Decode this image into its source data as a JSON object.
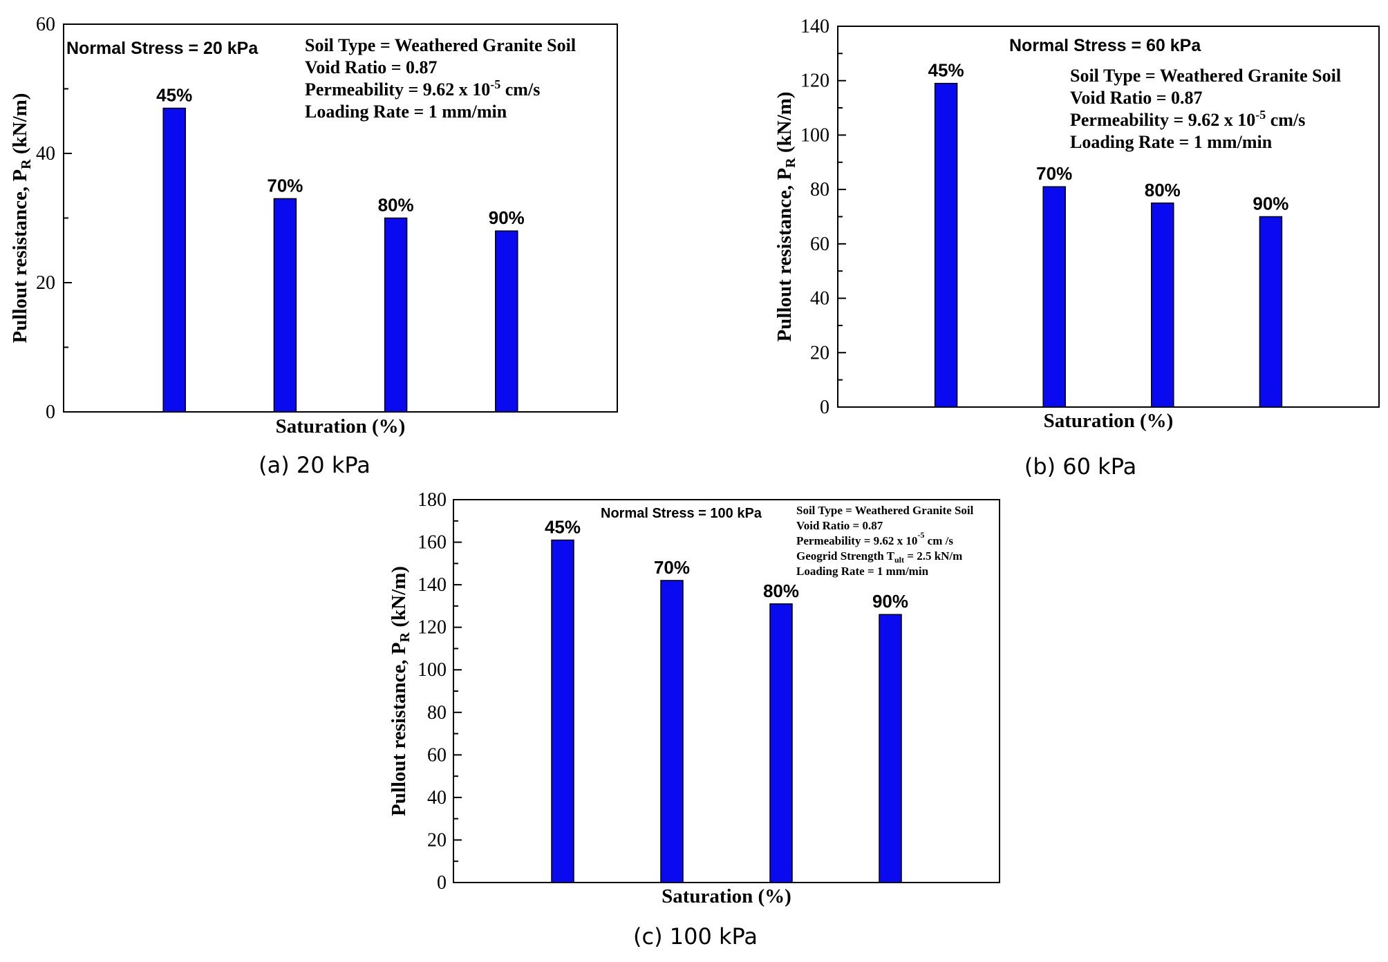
{
  "chart_data": [
    {
      "type": "bar",
      "caption": "(a) 20 kPa",
      "xlabel": "Saturation (%)",
      "ylabel": "Pullout resistance, PR (kN/m)",
      "ylabel_main": "Pullout resistance, P",
      "ylabel_sub": "R",
      "ylabel_tail": " (kN/m)",
      "ylim": [
        0,
        60
      ],
      "yticks": [
        0,
        20,
        40,
        60
      ],
      "categories": [
        "45%",
        "70%",
        "80%",
        "90%"
      ],
      "values": [
        47,
        33,
        30,
        28
      ],
      "bar_color": "#0a0af0",
      "stress_note": "Normal Stress = 20 kPa",
      "info_lines": [
        "Soil Type = Weathered Granite Soil",
        "Void Ratio = 0.87",
        "Permeability = 9.62 x 10-5 cm/s",
        "Loading Rate = 1 mm/min"
      ]
    },
    {
      "type": "bar",
      "caption": "(b) 60 kPa",
      "xlabel": "Saturation (%)",
      "ylabel": "Pullout resistance, PR (kN/m)",
      "ylabel_main": "Pullout resistance, P",
      "ylabel_sub": "R",
      "ylabel_tail": " (kN/m)",
      "ylim": [
        0,
        140
      ],
      "yticks": [
        0,
        20,
        40,
        60,
        80,
        100,
        120,
        140
      ],
      "categories": [
        "45%",
        "70%",
        "80%",
        "90%"
      ],
      "values": [
        119,
        81,
        75,
        70
      ],
      "bar_color": "#0a0af0",
      "stress_note": "Normal Stress = 60 kPa",
      "info_lines": [
        "Soil Type = Weathered Granite Soil",
        "Void Ratio = 0.87",
        "Permeability = 9.62 x 10-5 cm/s",
        "Loading Rate = 1 mm/min"
      ]
    },
    {
      "type": "bar",
      "caption": "(c) 100 kPa",
      "xlabel": "Saturation (%)",
      "ylabel": "Pullout resistance, PR (kN/m)",
      "ylabel_main": "Pullout resistance, P",
      "ylabel_sub": "R",
      "ylabel_tail": " (kN/m)",
      "ylim": [
        0,
        180
      ],
      "yticks": [
        0,
        20,
        40,
        60,
        80,
        100,
        120,
        140,
        160,
        180
      ],
      "categories": [
        "45%",
        "70%",
        "80%",
        "90%"
      ],
      "values": [
        161,
        142,
        131,
        126
      ],
      "bar_color": "#0a0af0",
      "stress_note": "Normal Stress = 100 kPa",
      "info_lines": [
        "Soil Type = Weathered Granite Soil",
        "Void Ratio = 0.87",
        "Permeability = 9.62 x 10-5 cm /s",
        "Geogrid Strength Tult = 2.5 kN/m",
        "Loading Rate = 1 mm/min"
      ]
    }
  ]
}
